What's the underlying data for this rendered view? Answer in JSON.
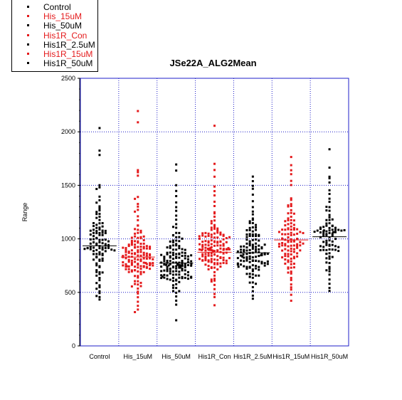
{
  "colors": {
    "black": "#000000",
    "red": "#e41a1c",
    "grid": "#1f1fc8"
  },
  "chart_data": {
    "type": "scatter",
    "title": "JSe22A_ALG2Mean",
    "xlabel": "",
    "ylabel": "Range",
    "ylim": [
      0,
      2500
    ],
    "yticks": [
      "0",
      "500",
      "1000",
      "1500",
      "2000",
      "2500"
    ],
    "grid": true,
    "legend_position": "top-left",
    "categories": [
      "Control",
      "His_15uM",
      "His_50uM",
      "His1R_Con",
      "His1R_2.5uM",
      "His1R_15uM",
      "His1R_50uM"
    ],
    "series": [
      {
        "name": "Control",
        "color": "#000000",
        "mean": 935,
        "count": 110,
        "values": [
          2030,
          1820,
          1790,
          1500,
          1480,
          1460,
          1400,
          1360,
          1340,
          1310,
          1290,
          1270,
          1250,
          1230,
          1210,
          1190,
          1170,
          1150,
          1130,
          1110,
          1090,
          1070,
          1050,
          1030,
          1010,
          990,
          970,
          950,
          930,
          910,
          890,
          870,
          850,
          830,
          810,
          790,
          770,
          750,
          730,
          710,
          690,
          670,
          650,
          630,
          610,
          590,
          570,
          550,
          530,
          510,
          490,
          470,
          450,
          430
        ],
        "outliers": [
          2030,
          1820,
          1790
        ]
      },
      {
        "name": "His_15uM",
        "color": "#e41a1c",
        "mean": 830,
        "count": 145,
        "values": [
          2200,
          2090,
          1640,
          1620,
          1590,
          1390,
          1380,
          1330,
          1300,
          1270,
          1250,
          1210,
          1170,
          1130,
          1090,
          1050,
          1010,
          970,
          930,
          890,
          850,
          810,
          770,
          730,
          690,
          650,
          610,
          570,
          530,
          490,
          450,
          410,
          380,
          340,
          320
        ]
      },
      {
        "name": "His_50uM",
        "color": "#000000",
        "mean": 775,
        "count": 150,
        "values": [
          1700,
          1640,
          1500,
          1450,
          1400,
          1340,
          1300,
          1260,
          1220,
          1180,
          1140,
          1100,
          1060,
          1020,
          980,
          940,
          900,
          860,
          820,
          780,
          740,
          700,
          660,
          620,
          580,
          540,
          500,
          460,
          420,
          380,
          240
        ]
      },
      {
        "name": "His1R_Con",
        "color": "#e41a1c",
        "mean": 875,
        "count": 150,
        "values": [
          2050,
          1700,
          1640,
          1580,
          1490,
          1440,
          1400,
          1350,
          1300,
          1250,
          1210,
          1170,
          1130,
          1090,
          1050,
          1010,
          970,
          930,
          890,
          850,
          810,
          770,
          730,
          690,
          650,
          610,
          570,
          530,
          490,
          450,
          380
        ]
      },
      {
        "name": "His1R_2.5uM",
        "color": "#000000",
        "mean": 870,
        "count": 130,
        "values": [
          1580,
          1540,
          1500,
          1470,
          1410,
          1350,
          1300,
          1260,
          1230,
          1190,
          1150,
          1110,
          1070,
          1030,
          990,
          950,
          910,
          870,
          830,
          790,
          750,
          710,
          670,
          630,
          590,
          550,
          510,
          470,
          440
        ]
      },
      {
        "name": "His1R_15uM",
        "color": "#e41a1c",
        "mean": 990,
        "count": 110,
        "values": [
          1760,
          1690,
          1640,
          1600,
          1540,
          1500,
          1380,
          1360,
          1330,
          1300,
          1270,
          1240,
          1210,
          1180,
          1150,
          1120,
          1090,
          1060,
          1030,
          1000,
          970,
          940,
          910,
          880,
          850,
          820,
          790,
          760,
          730,
          700,
          670,
          640,
          610,
          580,
          550,
          520,
          480,
          420
        ]
      },
      {
        "name": "His1R_50uM",
        "color": "#000000",
        "mean": 1020,
        "count": 90,
        "values": [
          1840,
          1670,
          1580,
          1560,
          1520,
          1460,
          1420,
          1380,
          1340,
          1300,
          1260,
          1220,
          1180,
          1140,
          1100,
          1060,
          1020,
          980,
          940,
          900,
          860,
          820,
          780,
          740,
          700,
          660,
          620,
          580,
          540,
          510
        ]
      }
    ]
  }
}
